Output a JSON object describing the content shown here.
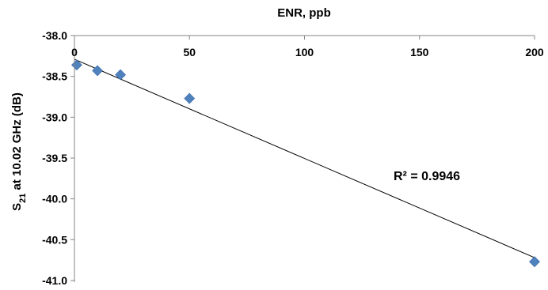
{
  "chart_data": {
    "type": "scatter",
    "title": "",
    "xlabel": "ENR, ppb",
    "ylabel_main": "S",
    "ylabel_sub": "21",
    "ylabel_rest": " at 10.02 GHz (dB)",
    "xlim": [
      0,
      200
    ],
    "ylim": [
      -41.0,
      -38.0
    ],
    "x_ticks": [
      0,
      50,
      100,
      150,
      200
    ],
    "x_tick_labels": [
      "0",
      "50",
      "100",
      "150",
      "200"
    ],
    "y_ticks": [
      -38.0,
      -38.5,
      -39.0,
      -39.5,
      -40.0,
      -40.5,
      -41.0
    ],
    "y_tick_labels": [
      "-38.0",
      "-38.5",
      "-39.0",
      "-39.5",
      "-40.0",
      "-40.5",
      "-41.0"
    ],
    "x_axis_position": "top",
    "grid": false,
    "legend": "none",
    "series": [
      {
        "color": "#4f81bd",
        "marker": "diamond",
        "x": [
          1,
          10,
          20,
          50,
          200
        ],
        "y": [
          -38.36,
          -38.43,
          -38.48,
          -38.77,
          -40.77
        ]
      }
    ],
    "trendline": {
      "type": "linear",
      "color": "#000000",
      "x": [
        0,
        200
      ],
      "y": [
        -38.29,
        -40.72
      ]
    },
    "annotation": "R² = 0.9946"
  }
}
